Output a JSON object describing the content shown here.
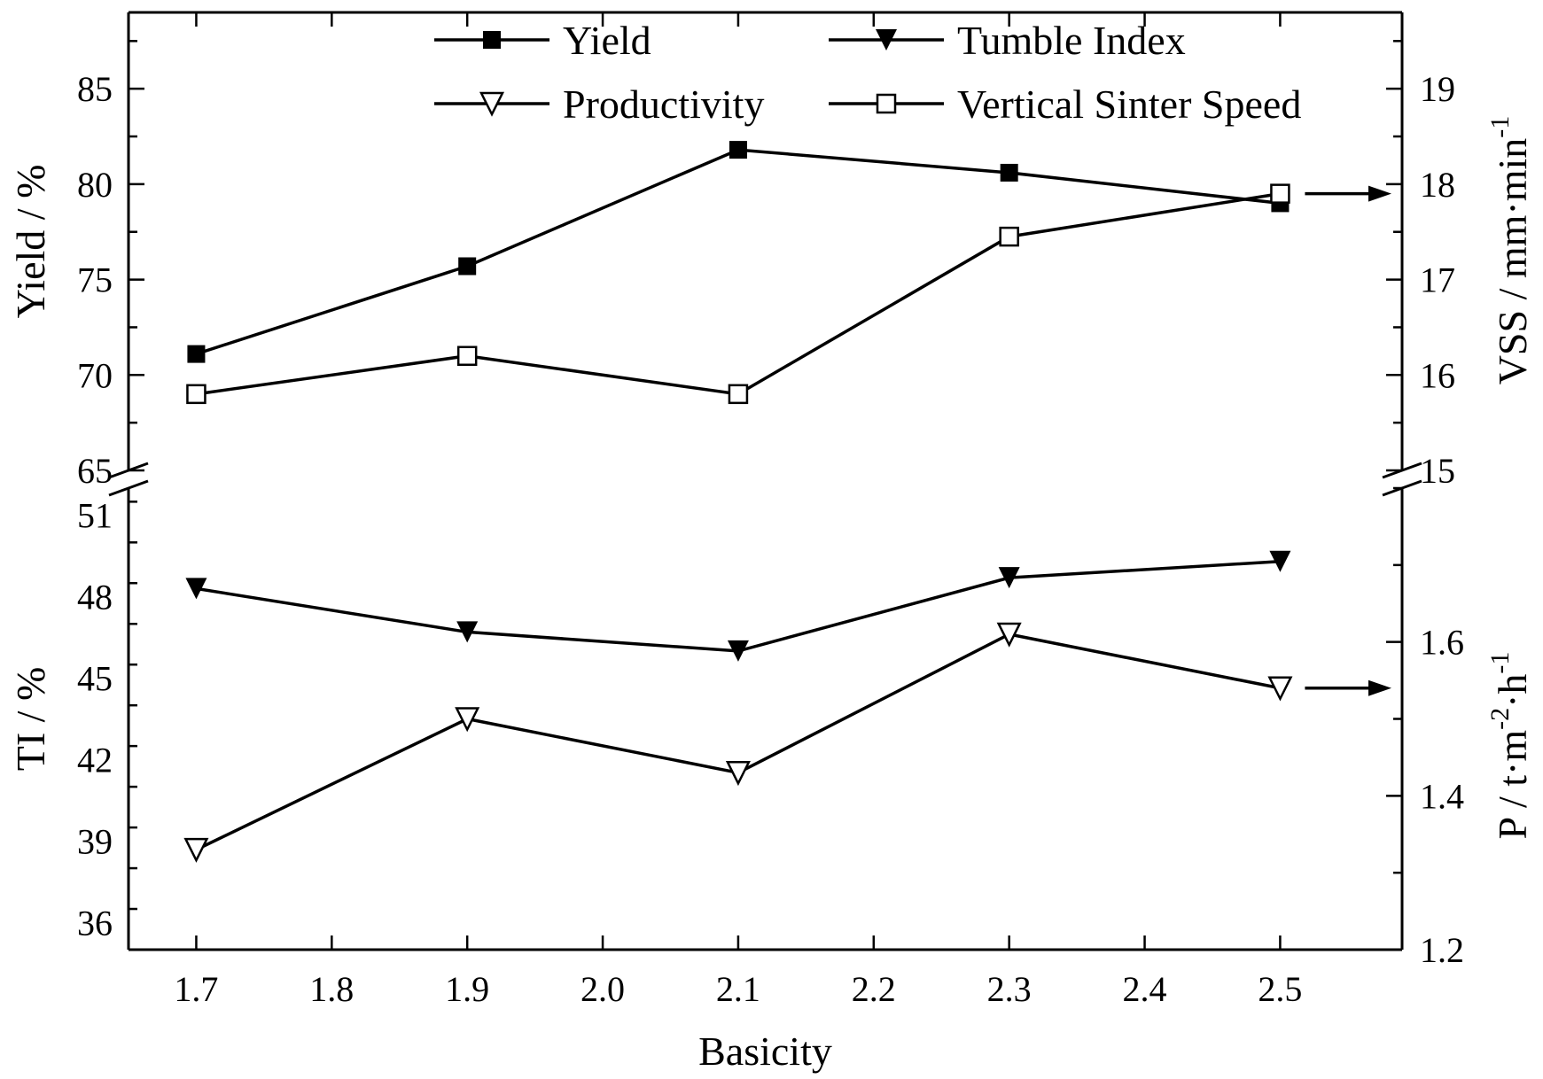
{
  "chart_data": {
    "type": "line",
    "xlabel": "Basicity",
    "x": [
      1.7,
      1.9,
      2.1,
      2.3,
      2.5
    ],
    "xlim": [
      1.65,
      2.59
    ],
    "x_tick_labels": [
      "1.7",
      "1.8",
      "1.9",
      "2.0",
      "2.1",
      "2.2",
      "2.3",
      "2.4",
      "2.5"
    ],
    "panels": {
      "top": {
        "left_axis": {
          "label": "Yield / %",
          "ylim": [
            65,
            89
          ],
          "tick_labels": [
            "65",
            "70",
            "75",
            "80",
            "85"
          ]
        },
        "right_axis": {
          "label_main": "VSS / mm·min",
          "label_sup": "-1",
          "ylim": [
            15,
            19.8
          ],
          "tick_labels": [
            "15",
            "16",
            "17",
            "18",
            "19"
          ]
        }
      },
      "bottom": {
        "left_axis": {
          "label": "TI / %",
          "ylim": [
            35,
            52
          ],
          "tick_labels": [
            "36",
            "39",
            "42",
            "45",
            "48",
            "51"
          ]
        },
        "right_axis": {
          "label_prefix": "P / t·m",
          "label_sup1": "-2",
          "label_mid": "·h",
          "label_sup2": "-1",
          "ylim": [
            1.2,
            1.8
          ],
          "tick_labels": [
            "1.2",
            "1.4",
            "1.6"
          ]
        }
      }
    },
    "series": [
      {
        "name": "Yield",
        "panel": "top",
        "axis": "left",
        "marker": "filled-square",
        "values": [
          71.1,
          75.7,
          81.8,
          80.6,
          79.0
        ]
      },
      {
        "name": "Tumble Index",
        "panel": "bottom",
        "axis": "left",
        "marker": "filled-triangle-down",
        "values": [
          48.3,
          46.7,
          46.0,
          48.7,
          49.3
        ]
      },
      {
        "name": "Productivity",
        "panel": "bottom",
        "axis": "right",
        "marker": "open-triangle-down",
        "values": [
          1.33,
          1.5,
          1.43,
          1.61,
          1.54
        ]
      },
      {
        "name": "Vertical Sinter Speed",
        "panel": "top",
        "axis": "right",
        "marker": "open-square",
        "values": [
          15.8,
          16.2,
          15.8,
          17.45,
          17.9
        ]
      }
    ],
    "legend": [
      "Yield",
      "Tumble Index",
      "Productivity",
      "Vertical Sinter Speed"
    ],
    "legend_position": "top"
  }
}
